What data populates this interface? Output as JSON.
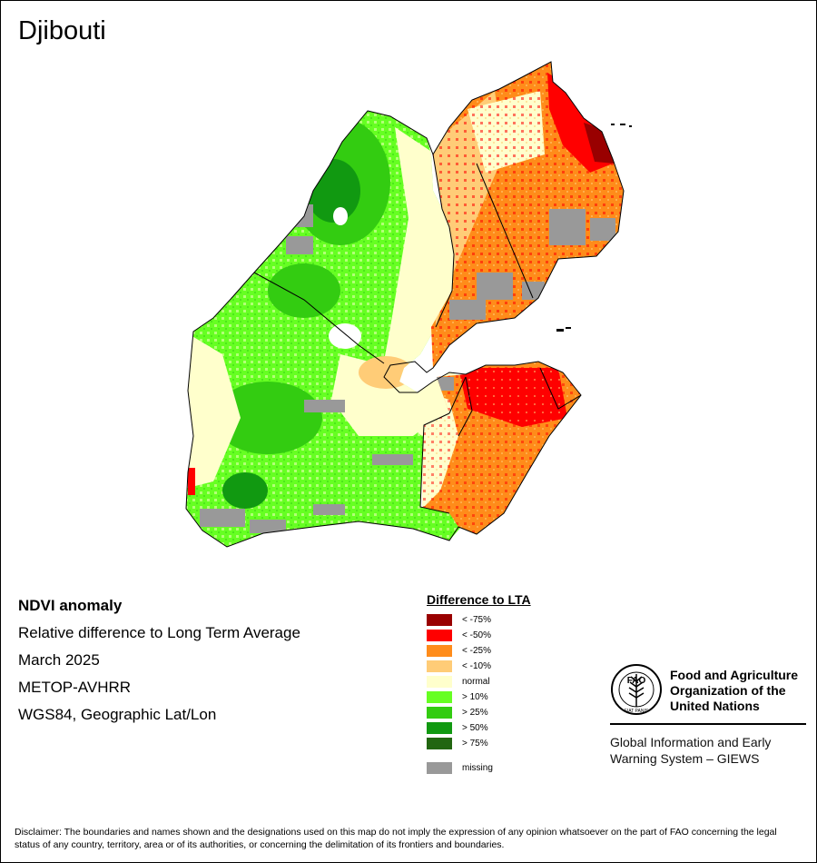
{
  "title": "Djibouti",
  "info": {
    "title": "NDVI anomaly",
    "lines": [
      "Relative difference to Long Term Average",
      "March 2025",
      "METOP-AVHRR",
      "WGS84, Geographic Lat/Lon"
    ]
  },
  "legend": {
    "title": "Difference to LTA",
    "items": [
      {
        "label": "< -75%",
        "color": "#990000"
      },
      {
        "label": "< -50%",
        "color": "#ff0000"
      },
      {
        "label": "< -25%",
        "color": "#ff8c1a"
      },
      {
        "label": "< -10%",
        "color": "#ffcc77"
      },
      {
        "label": "normal",
        "color": "#ffffcc"
      },
      {
        "label": "> 10%",
        "color": "#66ff22"
      },
      {
        "label": "> 25%",
        "color": "#33cc11"
      },
      {
        "label": "> 50%",
        "color": "#119911"
      },
      {
        "label": "> 75%",
        "color": "#226611"
      }
    ],
    "missing": {
      "label": "missing",
      "color": "#999999"
    }
  },
  "logo": {
    "emblem_letters": "FAO",
    "emblem_motto": "FIAT PANIS",
    "org_lines": [
      "Food and Agriculture",
      "Organization of the",
      "United Nations"
    ],
    "giews_lines": [
      "Global Information and Early",
      "Warning System – GIEWS"
    ]
  },
  "disclaimer": "Disclaimer: The boundaries and names shown and the designations used on this map do not imply the expression of any opinion whatsoever on the part of FAO concerning the legal status of any country, territory, area or of its authorities, or concerning the delimitation of its frontiers and boundaries."
}
